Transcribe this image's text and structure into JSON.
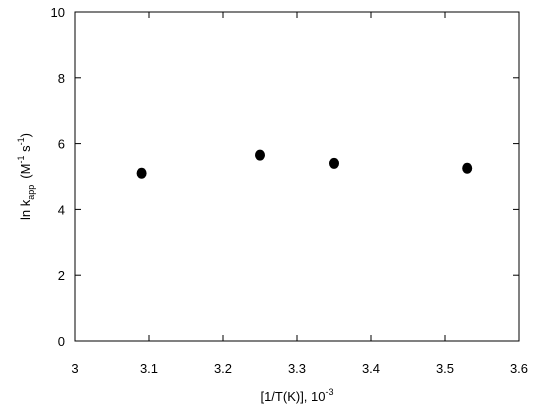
{
  "chart_data": {
    "type": "scatter",
    "title": "",
    "xlabel": {
      "main": "[1/T(K)], 10",
      "sup": "-3"
    },
    "ylabel": {
      "prefix": "ln k",
      "sub": "app",
      "unit_open": "(M",
      "unit_sup1": "-1",
      "unit_mid": " s",
      "unit_sup2": "-1",
      "unit_close": ")"
    },
    "xlim": [
      3.0,
      3.6
    ],
    "ylim": [
      0,
      10
    ],
    "x_ticks": [
      "3",
      "3.1",
      "3.2",
      "3.3",
      "3.4",
      "3.5",
      "3.6"
    ],
    "y_ticks": [
      "0",
      "2",
      "4",
      "6",
      "8",
      "10"
    ],
    "grid": false,
    "marker_color": "#000000",
    "series": [
      {
        "points": [
          {
            "x": 3.09,
            "y": 5.1
          },
          {
            "x": 3.25,
            "y": 5.65
          },
          {
            "x": 3.35,
            "y": 5.4
          },
          {
            "x": 3.53,
            "y": 5.25
          }
        ]
      }
    ]
  }
}
